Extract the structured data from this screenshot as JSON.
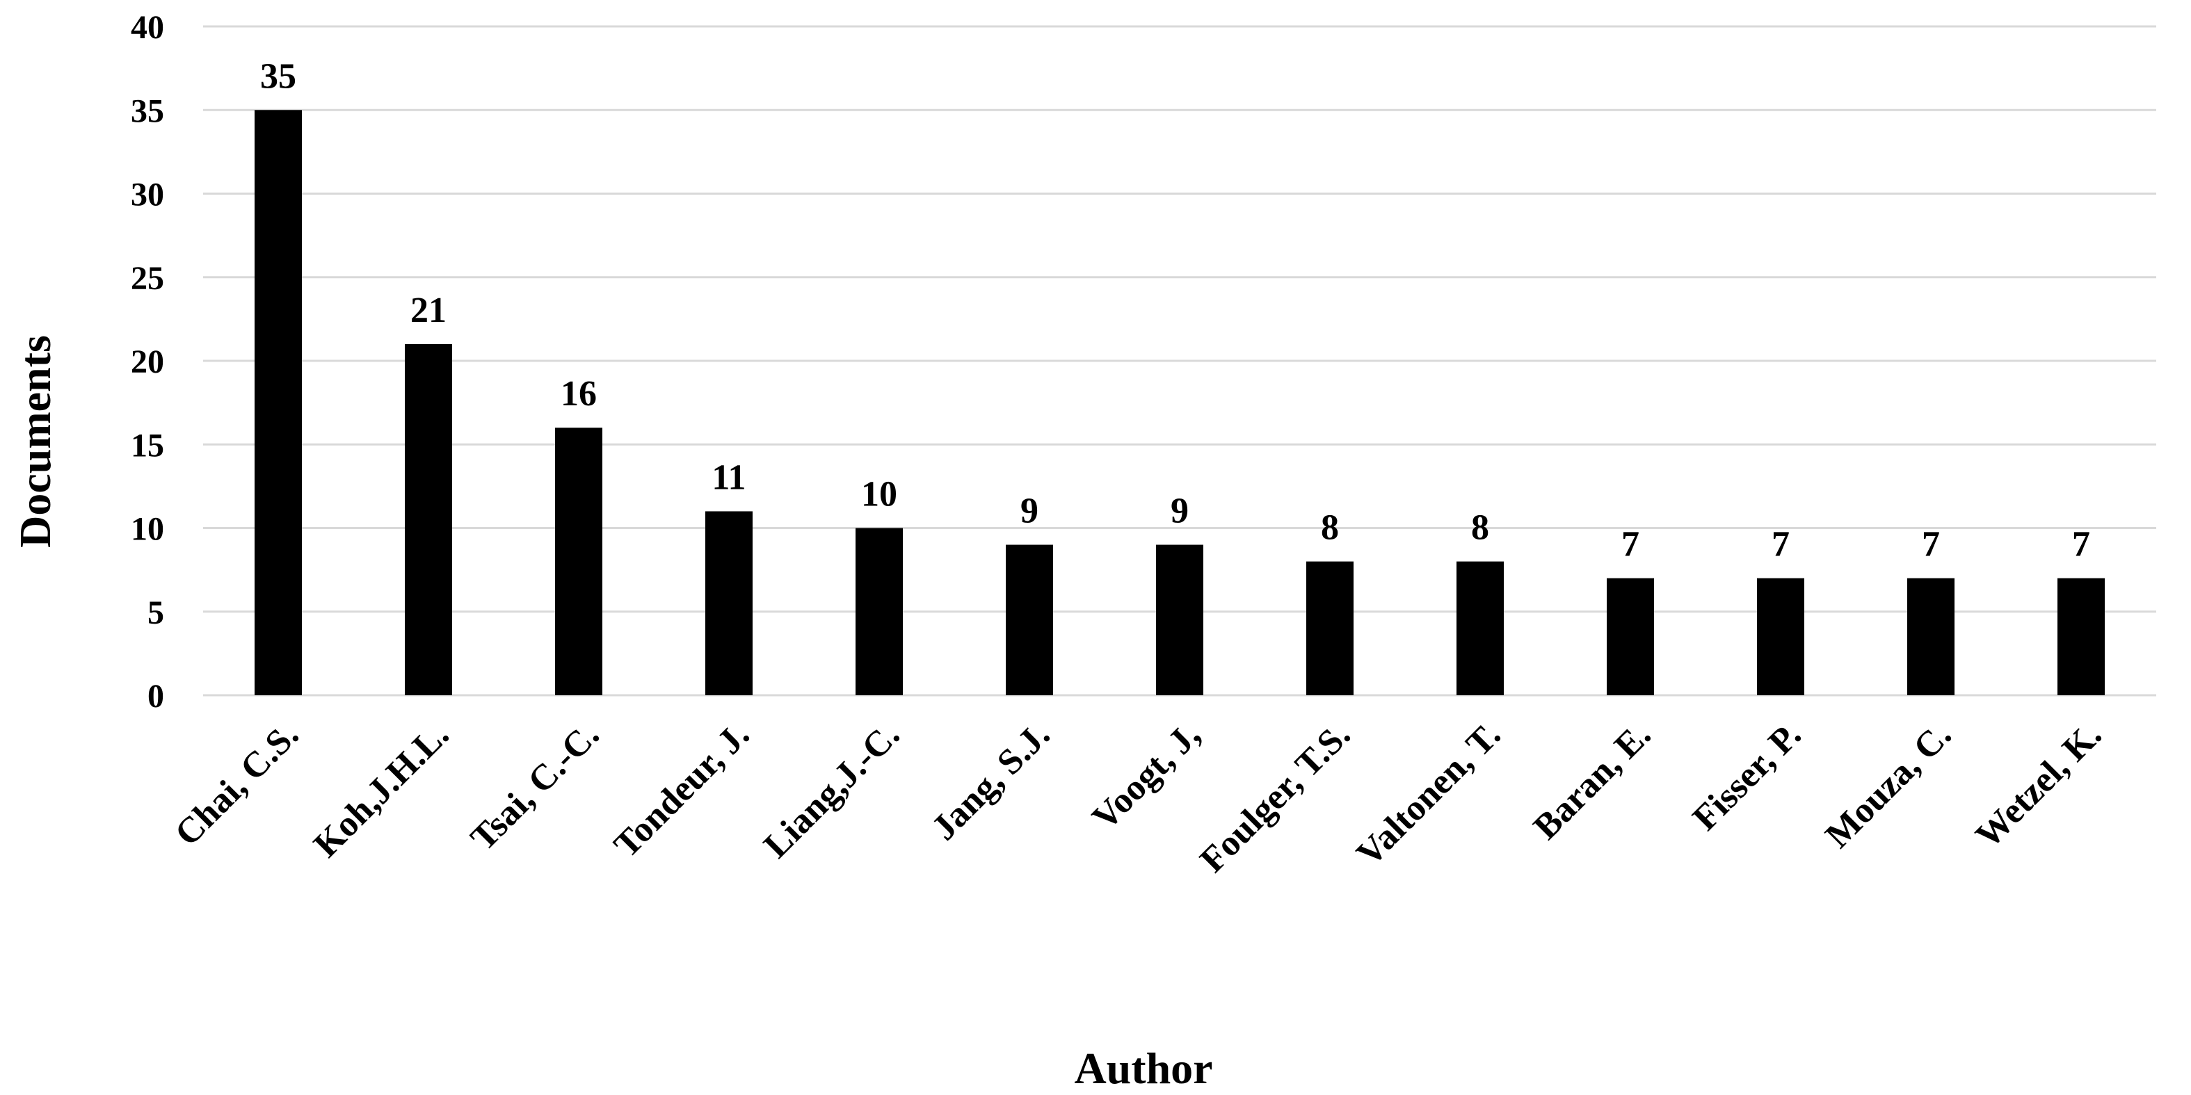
{
  "chart_data": {
    "type": "bar",
    "title": "",
    "xlabel": "Author",
    "ylabel": "Documents",
    "categories": [
      "Chai, C.S.",
      "Koh,J.H.L.",
      "Tsai, C.-C.",
      "Tondeur, J.",
      "Liang,J.-C.",
      "Jang, S.J.",
      "Voogt, J,",
      "Foulger, T.S.",
      "Valtonen, T.",
      "Baran, E.",
      "Fisser, P.",
      "Mouza, C.",
      "Wetzel, K."
    ],
    "values": [
      35,
      21,
      16,
      11,
      10,
      9,
      9,
      8,
      8,
      7,
      7,
      7,
      7
    ],
    "data_labels": [
      "35",
      "21",
      "16",
      "11",
      "10",
      "9",
      "9",
      "8",
      "8",
      "7",
      "7",
      "7",
      "7"
    ],
    "ylim": [
      0,
      40
    ],
    "yticks": [
      "0",
      "5",
      "10",
      "15",
      "20",
      "25",
      "30",
      "35",
      "40"
    ],
    "grid": true,
    "legend": "none",
    "bar_color": "#000000",
    "grid_color": "#d9d9d9"
  }
}
